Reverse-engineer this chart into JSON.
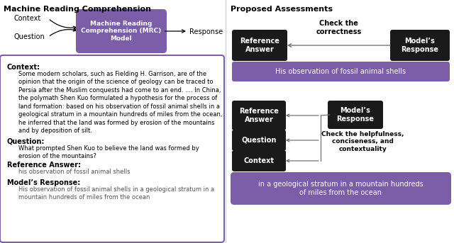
{
  "title_left": "Machine Reading Comprehension",
  "title_right": "Proposed Assessments",
  "mrc_box_text": "Machine Reading\nComprehension (MRC)\nModel",
  "mrc_box_color": "#7B5EA7",
  "context_label": "Context",
  "question_label": "Question",
  "response_label": "Response",
  "left_panel_border_color": "#7B5EA7",
  "context_heading": "Context:",
  "context_text": "Some modern scholars, such as Fielding H. Garrison, are of the\nopinion that the origin of the science of geology can be traced to\nPersia after the Muslim conquests had come to an end. .... In China,\nthe polymath Shen Kuo formulated a hypothesis for the process of\nland formation: based on his observation of fossil animal shells in a\ngeological stratum in a mountain hundreds of miles from the ocean,\nhe inferred that the land was formed by erosion of the mountains\nand by deposition of silt.",
  "question_heading": "Question:",
  "question_text": "What prompted Shen Kuo to believe the land was formed by\nerosion of the mountains?",
  "ref_answer_heading": "Reference Answer:",
  "ref_answer_text": "his observation of fossil animal shells",
  "model_response_heading": "Model’s Response:",
  "model_response_text": "His observation of fossil animal shells in a geological stratum in a\nmountain hundreds of miles from the ocean",
  "black_box_color": "#1a1a1a",
  "purple_banner_color": "#7B5EA7",
  "assessment1_ref": "Reference\nAnswer",
  "assessment1_model": "Model’s\nResponse",
  "check_correctness": "Check the\ncorrectness",
  "banner1_text": "His observation of fossil animal shells",
  "assessment2_ref": "Reference\nAnswer",
  "assessment2_question": "Question",
  "assessment2_context": "Context",
  "assessment2_model": "Model’s\nResponse",
  "check_helpfulness": "Check the helpfulness,\nconciseness, and\ncontextuality",
  "banner2_text": "in a geological stratum in a mountain hundreds\nof miles from the ocean",
  "arrow_color": "#666666",
  "divider_color": "#cccccc"
}
